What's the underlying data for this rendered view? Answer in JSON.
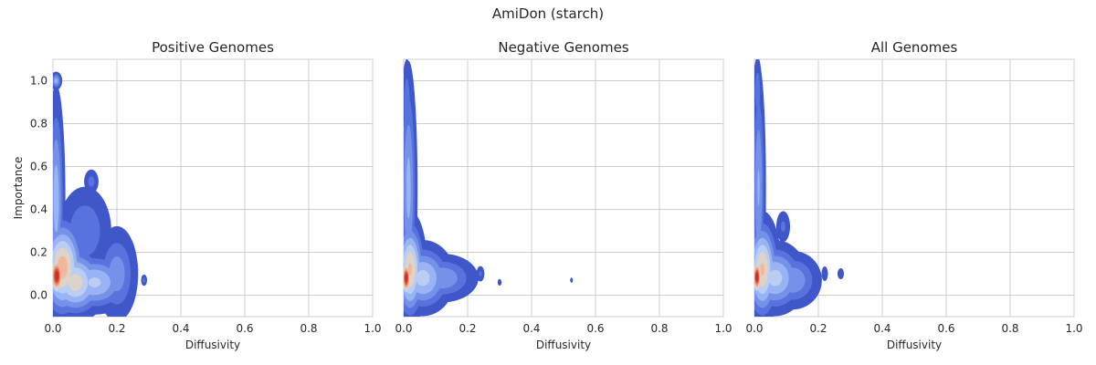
{
  "figure_title": "AmiDon (starch)",
  "colors": {
    "background": "#ffffff",
    "grid": "#cccccc",
    "text": "#262626",
    "density_levels": [
      "#3f57c9",
      "#5873de",
      "#7591e9",
      "#98b4f4",
      "#bccdf4",
      "#dcd3ca",
      "#f0b89a",
      "#ec8d6c",
      "#d9553f",
      "#c43127"
    ]
  },
  "chart_data": [
    {
      "type": "density-contour",
      "title": "Positive Genomes",
      "xlabel": "Diffusivity",
      "ylabel": "Importance",
      "xlim": [
        0,
        1
      ],
      "ylim": [
        -0.1,
        1.1
      ],
      "xticks": [
        "0.0",
        "0.2",
        "0.4",
        "0.6",
        "0.8",
        "1.0"
      ],
      "yticks": [
        "0.0",
        "0.2",
        "0.4",
        "0.6",
        "0.8",
        "1.0"
      ],
      "grid": true,
      "blobs": [
        {
          "x": 0.012,
          "y": 0.09,
          "sx": 0.011,
          "sy": 0.045,
          "w": 1.0
        },
        {
          "x": 0.03,
          "y": 0.13,
          "sx": 0.03,
          "sy": 0.1,
          "w": 0.55
        },
        {
          "x": 0.07,
          "y": 0.06,
          "sx": 0.04,
          "sy": 0.07,
          "w": 0.42
        },
        {
          "x": 0.13,
          "y": 0.06,
          "sx": 0.05,
          "sy": 0.06,
          "w": 0.28
        },
        {
          "x": 0.2,
          "y": 0.1,
          "sx": 0.03,
          "sy": 0.1,
          "w": 0.14
        },
        {
          "x": 0.01,
          "y": 0.45,
          "sx": 0.012,
          "sy": 0.22,
          "w": 0.22
        },
        {
          "x": 0.1,
          "y": 0.3,
          "sx": 0.04,
          "sy": 0.1,
          "w": 0.1
        },
        {
          "x": 0.12,
          "y": 0.53,
          "sx": 0.012,
          "sy": 0.03,
          "w": 0.07
        },
        {
          "x": 0.01,
          "y": 1.0,
          "sx": 0.008,
          "sy": 0.018,
          "w": 0.2
        },
        {
          "x": 0.285,
          "y": 0.07,
          "sx": 0.005,
          "sy": 0.014,
          "w": 0.07
        }
      ]
    },
    {
      "type": "density-contour",
      "title": "Negative Genomes",
      "xlabel": "Diffusivity",
      "ylabel": "",
      "xlim": [
        0,
        1
      ],
      "ylim": [
        -0.1,
        1.1
      ],
      "xticks": [
        "0.0",
        "0.2",
        "0.4",
        "0.6",
        "0.8",
        "1.0"
      ],
      "yticks": [],
      "grid": true,
      "blobs": [
        {
          "x": 0.008,
          "y": 0.08,
          "sx": 0.008,
          "sy": 0.04,
          "w": 1.0
        },
        {
          "x": 0.02,
          "y": 0.12,
          "sx": 0.02,
          "sy": 0.1,
          "w": 0.5
        },
        {
          "x": 0.06,
          "y": 0.08,
          "sx": 0.04,
          "sy": 0.07,
          "w": 0.3
        },
        {
          "x": 0.12,
          "y": 0.08,
          "sx": 0.05,
          "sy": 0.05,
          "w": 0.16
        },
        {
          "x": 0.015,
          "y": 0.5,
          "sx": 0.012,
          "sy": 0.25,
          "w": 0.2
        },
        {
          "x": 0.01,
          "y": 0.9,
          "sx": 0.008,
          "sy": 0.1,
          "w": 0.09
        },
        {
          "x": 0.2,
          "y": 0.1,
          "sx": 0.008,
          "sy": 0.012,
          "w": 0.05
        },
        {
          "x": 0.24,
          "y": 0.1,
          "sx": 0.007,
          "sy": 0.02,
          "w": 0.06
        },
        {
          "x": 0.3,
          "y": 0.06,
          "sx": 0.004,
          "sy": 0.01,
          "w": 0.04
        },
        {
          "x": 0.525,
          "y": 0.07,
          "sx": 0.003,
          "sy": 0.008,
          "w": 0.035
        }
      ]
    },
    {
      "type": "density-contour",
      "title": "All Genomes",
      "xlabel": "Diffusivity",
      "ylabel": "",
      "xlim": [
        0,
        1
      ],
      "ylim": [
        -0.1,
        1.1
      ],
      "xticks": [
        "0.0",
        "0.2",
        "0.4",
        "0.6",
        "0.8",
        "1.0"
      ],
      "yticks": [],
      "grid": true,
      "blobs": [
        {
          "x": 0.008,
          "y": 0.085,
          "sx": 0.008,
          "sy": 0.04,
          "w": 1.0
        },
        {
          "x": 0.025,
          "y": 0.12,
          "sx": 0.022,
          "sy": 0.1,
          "w": 0.5
        },
        {
          "x": 0.065,
          "y": 0.08,
          "sx": 0.04,
          "sy": 0.07,
          "w": 0.3
        },
        {
          "x": 0.12,
          "y": 0.07,
          "sx": 0.04,
          "sy": 0.06,
          "w": 0.16
        },
        {
          "x": 0.013,
          "y": 0.5,
          "sx": 0.01,
          "sy": 0.25,
          "w": 0.18
        },
        {
          "x": 0.01,
          "y": 0.95,
          "sx": 0.007,
          "sy": 0.08,
          "w": 0.09
        },
        {
          "x": 0.09,
          "y": 0.32,
          "sx": 0.012,
          "sy": 0.04,
          "w": 0.06
        },
        {
          "x": 0.22,
          "y": 0.1,
          "sx": 0.006,
          "sy": 0.02,
          "w": 0.05
        },
        {
          "x": 0.27,
          "y": 0.1,
          "sx": 0.006,
          "sy": 0.015,
          "w": 0.05
        }
      ]
    }
  ]
}
